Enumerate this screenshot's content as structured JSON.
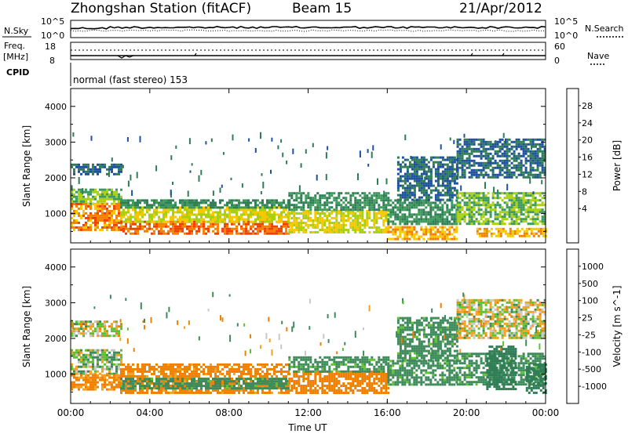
{
  "header": {
    "station": "Zhongshan Station (fitACF)",
    "beam": "Beam 15",
    "date": "21/Apr/2012"
  },
  "noise_panel": {
    "left_label": "N.Sky",
    "left_ticks": [
      "10^5",
      "10^0"
    ],
    "right_label": "N.Search",
    "right_ticks": [
      "10^5",
      "10^0"
    ]
  },
  "freq_panel": {
    "left_label_1": "Freq.",
    "left_label_2": "[MHz]",
    "left_ticks": [
      "18",
      "8"
    ],
    "right_label": "Nave",
    "right_ticks": [
      "60",
      "0"
    ]
  },
  "cpid": {
    "label": "CPID",
    "text": "normal (fast stereo) 153"
  },
  "chart_data": [
    {
      "type": "heatmap",
      "name": "Power",
      "ylabel": "Slant Range [km]",
      "xlabel": "",
      "y_ticks": [
        1000,
        2000,
        3000,
        4000
      ],
      "ylim": [
        180,
        4500
      ],
      "x_ticks": [
        "00:00",
        "04:00",
        "08:00",
        "12:00",
        "16:00",
        "20:00",
        "00:00"
      ],
      "colorbar": {
        "label": "Power [dB]",
        "ticks": [
          "28",
          "24",
          "20",
          "16",
          "12",
          "8",
          "4"
        ],
        "colors": [
          "#1010ff",
          "#1e50a0",
          "#2e7d55",
          "#3d9a5a",
          "#a8d010",
          "#f5c800",
          "#f58000",
          "#f04000",
          "#ee0000"
        ]
      },
      "regions": [
        {
          "t0": 0.0,
          "t1": 2.5,
          "r0": 2100,
          "r1": 2400,
          "value": 8
        },
        {
          "t0": 0.0,
          "t1": 2.5,
          "r0": 1300,
          "r1": 1700,
          "value": 16
        },
        {
          "t0": 0.0,
          "t1": 2.5,
          "r0": 550,
          "r1": 1300,
          "value": 26
        },
        {
          "t0": 2.5,
          "t1": 11.0,
          "r0": 450,
          "r1": 800,
          "value": 28
        },
        {
          "t0": 2.5,
          "t1": 11.0,
          "r0": 800,
          "r1": 1200,
          "value": 20
        },
        {
          "t0": 2.5,
          "t1": 11.0,
          "r0": 1200,
          "r1": 1400,
          "value": 12
        },
        {
          "t0": 11.0,
          "t1": 16.0,
          "r0": 500,
          "r1": 1100,
          "value": 20
        },
        {
          "t0": 11.0,
          "t1": 16.0,
          "r0": 1100,
          "r1": 1600,
          "value": 12
        },
        {
          "t0": 16.0,
          "t1": 19.5,
          "r0": 700,
          "r1": 1400,
          "value": 12
        },
        {
          "t0": 16.0,
          "t1": 19.5,
          "r0": 300,
          "r1": 650,
          "value": 24
        },
        {
          "t0": 16.5,
          "t1": 19.5,
          "r0": 1400,
          "r1": 2600,
          "value": 8
        },
        {
          "t0": 19.5,
          "t1": 24.0,
          "r0": 2000,
          "r1": 3100,
          "value": 8
        },
        {
          "t0": 19.5,
          "t1": 24.0,
          "r0": 700,
          "r1": 1600,
          "value": 16
        },
        {
          "t0": 20.5,
          "t1": 24.0,
          "r0": 350,
          "r1": 600,
          "value": 24
        }
      ]
    },
    {
      "type": "heatmap",
      "name": "Velocity",
      "ylabel": "Slant Range [km]",
      "xlabel": "Time UT",
      "y_ticks": [
        1000,
        2000,
        3000,
        4000
      ],
      "ylim": [
        180,
        4500
      ],
      "x_ticks": [
        "00:00",
        "04:00",
        "08:00",
        "12:00",
        "16:00",
        "20:00",
        "00:00"
      ],
      "colorbar": {
        "label": "Velocity [m s^-1]",
        "ticks": [
          "1000",
          "500",
          "100",
          "25",
          "-25",
          "-100",
          "-500",
          "-1000"
        ],
        "colors": [
          "#ee0000",
          "#f04000",
          "#f08000",
          "#f5a020",
          "#c8c8c8",
          "#60c030",
          "#3d8a5a",
          "#2e7d55",
          "#1e4ab0"
        ]
      },
      "regions": [
        {
          "t0": 0.0,
          "t1": 2.5,
          "r0": 2100,
          "r1": 2500,
          "value": 0
        },
        {
          "t0": 0.0,
          "t1": 2.5,
          "r0": 1000,
          "r1": 1700,
          "value": 50
        },
        {
          "t0": 0.0,
          "t1": 2.5,
          "r0": 550,
          "r1": 1000,
          "value": -150
        },
        {
          "t0": 2.5,
          "t1": 11.0,
          "r0": 450,
          "r1": 1300,
          "value": -200
        },
        {
          "t0": 2.5,
          "t1": 11.0,
          "r0": 600,
          "r1": 900,
          "value": 200
        },
        {
          "t0": 11.0,
          "t1": 16.0,
          "r0": 500,
          "r1": 1100,
          "value": -300
        },
        {
          "t0": 11.0,
          "t1": 16.0,
          "r0": 1100,
          "r1": 1500,
          "value": 200
        },
        {
          "t0": 16.0,
          "t1": 19.5,
          "r0": 700,
          "r1": 1400,
          "value": 200
        },
        {
          "t0": 16.5,
          "t1": 19.5,
          "r0": 1400,
          "r1": 2600,
          "value": 200
        },
        {
          "t0": 19.5,
          "t1": 24.0,
          "r0": 2000,
          "r1": 3100,
          "value": 0
        },
        {
          "t0": 19.5,
          "t1": 24.0,
          "r0": 700,
          "r1": 1600,
          "value": 200
        },
        {
          "t0": 21.0,
          "t1": 22.5,
          "r0": 600,
          "r1": 1800,
          "value": 700
        },
        {
          "t0": 23.0,
          "t1": 24.0,
          "r0": 500,
          "r1": 1300,
          "value": 700
        }
      ]
    }
  ]
}
